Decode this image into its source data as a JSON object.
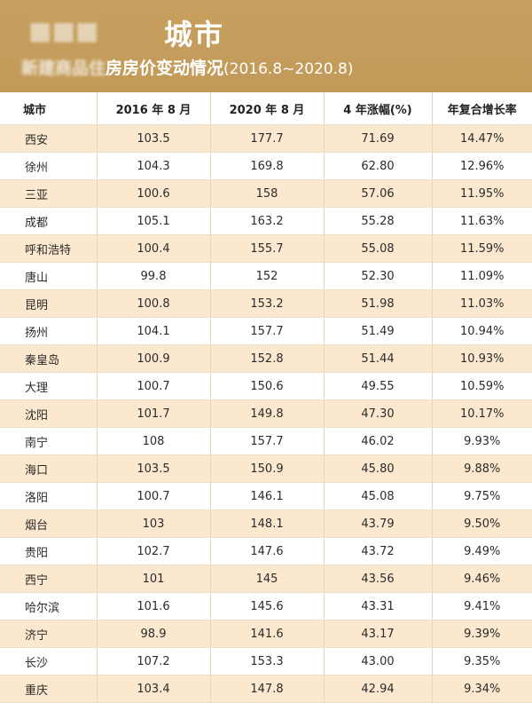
{
  "header": {
    "title": "城市",
    "subtitle_blurred": "新建商品住",
    "subtitle": "房房价变动情况",
    "subtitle_range": "(2016.8~2020.8)",
    "colors": {
      "band": "#c39c5b",
      "odd_row": "#fbe8ce"
    }
  },
  "table": {
    "columns": [
      "城市",
      "2016 年 8 月",
      "2020 年 8 月",
      "4 年涨幅(%)",
      "年复合增长率"
    ],
    "rows": [
      [
        "西安",
        "103.5",
        "177.7",
        "71.69",
        "14.47%"
      ],
      [
        "徐州",
        "104.3",
        "169.8",
        "62.80",
        "12.96%"
      ],
      [
        "三亚",
        "100.6",
        "158",
        "57.06",
        "11.95%"
      ],
      [
        "成都",
        "105.1",
        "163.2",
        "55.28",
        "11.63%"
      ],
      [
        "呼和浩特",
        "100.4",
        "155.7",
        "55.08",
        "11.59%"
      ],
      [
        "唐山",
        "99.8",
        "152",
        "52.30",
        "11.09%"
      ],
      [
        "昆明",
        "100.8",
        "153.2",
        "51.98",
        "11.03%"
      ],
      [
        "扬州",
        "104.1",
        "157.7",
        "51.49",
        "10.94%"
      ],
      [
        "秦皇岛",
        "100.9",
        "152.8",
        "51.44",
        "10.93%"
      ],
      [
        "大理",
        "100.7",
        "150.6",
        "49.55",
        "10.59%"
      ],
      [
        "沈阳",
        "101.7",
        "149.8",
        "47.30",
        "10.17%"
      ],
      [
        "南宁",
        "108",
        "157.7",
        "46.02",
        "9.93%"
      ],
      [
        "海口",
        "103.5",
        "150.9",
        "45.80",
        "9.88%"
      ],
      [
        "洛阳",
        "100.7",
        "146.1",
        "45.08",
        "9.75%"
      ],
      [
        "烟台",
        "103",
        "148.1",
        "43.79",
        "9.50%"
      ],
      [
        "贵阳",
        "102.7",
        "147.6",
        "43.72",
        "9.49%"
      ],
      [
        "西宁",
        "101",
        "145",
        "43.56",
        "9.46%"
      ],
      [
        "哈尔滨",
        "101.6",
        "145.6",
        "43.31",
        "9.41%"
      ],
      [
        "济宁",
        "98.9",
        "141.6",
        "43.17",
        "9.39%"
      ],
      [
        "长沙",
        "107.2",
        "153.3",
        "43.00",
        "9.35%"
      ],
      [
        "重庆",
        "103.4",
        "147.8",
        "42.94",
        "9.34%"
      ]
    ]
  }
}
